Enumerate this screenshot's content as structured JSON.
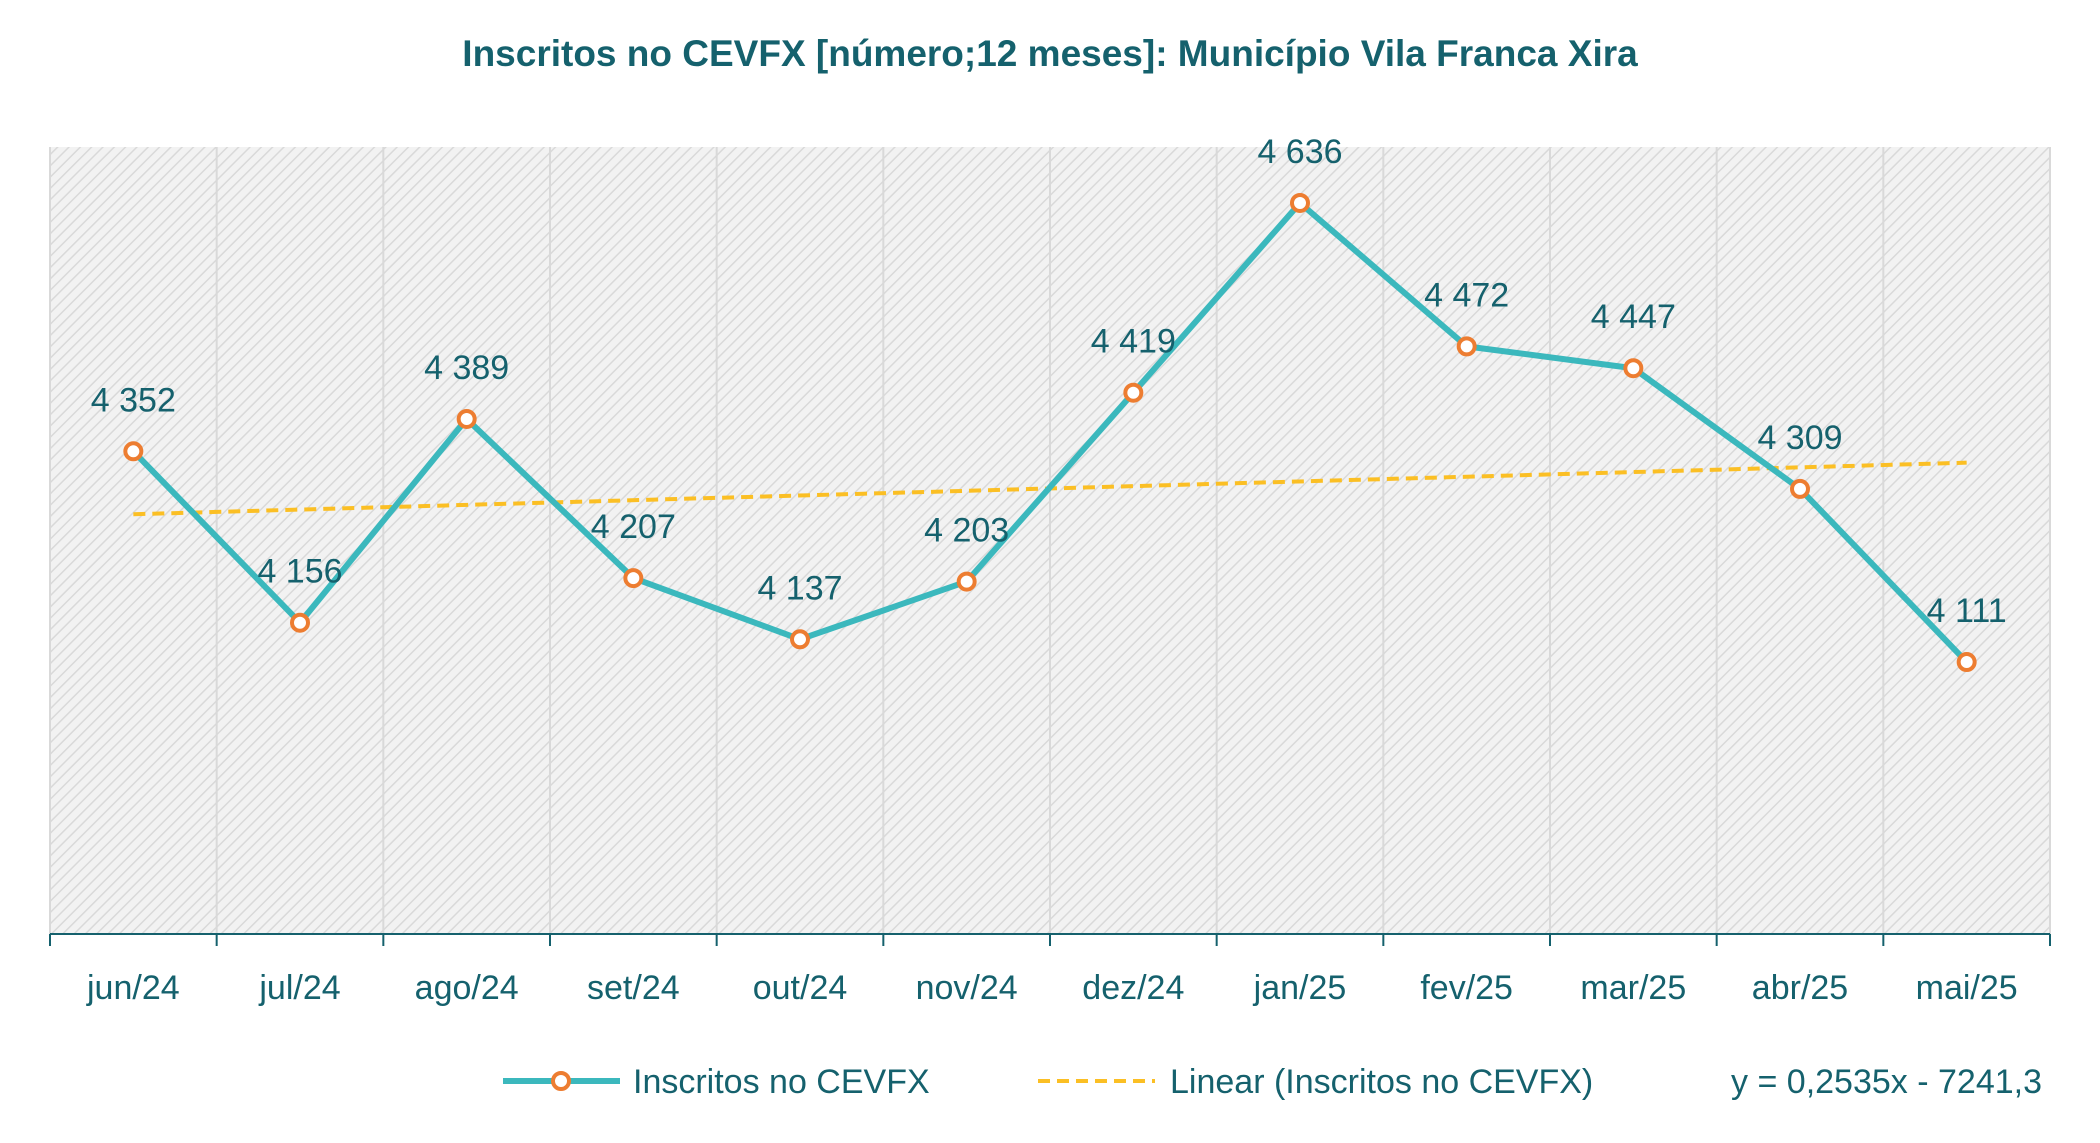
{
  "chart_data": {
    "type": "line",
    "title": "Inscritos no CEVFX [número;12 meses]: Município Vila Franca Xira",
    "categories": [
      "jun/24",
      "jul/24",
      "ago/24",
      "set/24",
      "out/24",
      "nov/24",
      "dez/24",
      "jan/25",
      "fev/25",
      "mar/25",
      "abr/25",
      "mai/25"
    ],
    "series": [
      {
        "name": "Inscritos no CEVFX",
        "values": [
          4352,
          4156,
          4389,
          4207,
          4137,
          4203,
          4419,
          4636,
          4472,
          4447,
          4309,
          4111
        ],
        "data_labels": [
          "4 352",
          "4 156",
          "4 389",
          "4 207",
          "4 137",
          "4 203",
          "4 419",
          "4 636",
          "4 472",
          "4 447",
          "4 309",
          "4 111"
        ],
        "color": "#3bb8bd",
        "marker_color": "#ed7d31"
      }
    ],
    "trendline": {
      "name": "Linear (Inscritos no CEVFX)",
      "equation": "y = 0,2535x - 7241,3",
      "start": 4280,
      "end": 4339,
      "color": "#fbbf24"
    },
    "ylim": [
      3800,
      4700
    ],
    "grid": "vertical",
    "legend": "bottom",
    "xlabel": "",
    "ylabel": ""
  }
}
